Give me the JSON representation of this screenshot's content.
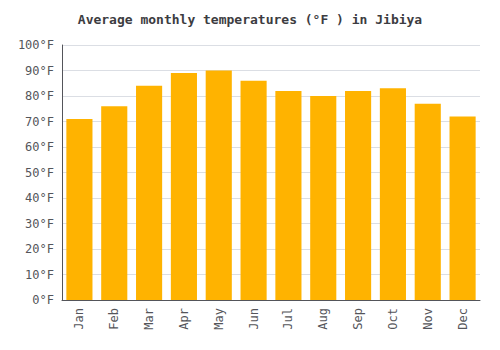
{
  "chart_data": {
    "type": "bar",
    "title": "Average monthly temperatures (°F ) in Jibiya",
    "categories": [
      "Jan",
      "Feb",
      "Mar",
      "Apr",
      "May",
      "Jun",
      "Jul",
      "Aug",
      "Sep",
      "Oct",
      "Nov",
      "Dec"
    ],
    "values": [
      71,
      76,
      84,
      89,
      90,
      86,
      82,
      80,
      82,
      83,
      77,
      72
    ],
    "color": "#FFB300",
    "ylim": [
      0,
      100
    ],
    "yticks": [
      {
        "value": 0,
        "label": "0°F"
      },
      {
        "value": 10,
        "label": "10°F"
      },
      {
        "value": 20,
        "label": "20°F"
      },
      {
        "value": 30,
        "label": "30°F"
      },
      {
        "value": 40,
        "label": "40°F"
      },
      {
        "value": 50,
        "label": "50°F"
      },
      {
        "value": 60,
        "label": "60°F"
      },
      {
        "value": 70,
        "label": "70°F"
      },
      {
        "value": 80,
        "label": "80°F"
      },
      {
        "value": 90,
        "label": "90°F"
      },
      {
        "value": 100,
        "label": "100°F"
      }
    ],
    "grid": true
  }
}
